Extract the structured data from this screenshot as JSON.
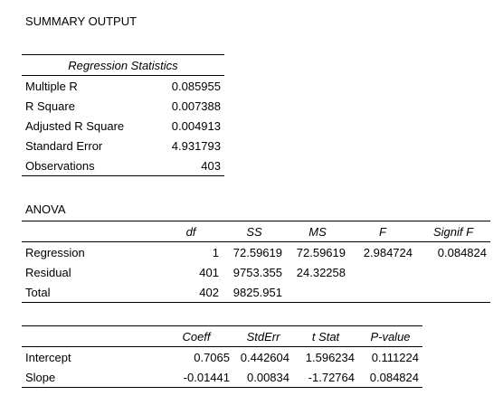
{
  "title": "SUMMARY OUTPUT",
  "regression_statistics": {
    "header": "Regression Statistics",
    "rows": [
      {
        "label": "Multiple R",
        "value": "0.085955"
      },
      {
        "label": "R Square",
        "value": "0.007388"
      },
      {
        "label": "Adjusted R Square",
        "value": "0.004913"
      },
      {
        "label": "Standard Error",
        "value": "4.931793"
      },
      {
        "label": "Observations",
        "value": "403"
      }
    ]
  },
  "anova": {
    "title": "ANOVA",
    "headers": [
      "df",
      "SS",
      "MS",
      "F",
      "Signif F"
    ],
    "rows": [
      {
        "label": "Regression",
        "cells": [
          "1",
          "72.59619",
          "72.59619",
          "2.984724",
          "0.084824"
        ]
      },
      {
        "label": "Residual",
        "cells": [
          "401",
          "9753.355",
          "24.32258",
          "",
          ""
        ]
      },
      {
        "label": "Total",
        "cells": [
          "402",
          "9825.951",
          "",
          "",
          ""
        ]
      }
    ]
  },
  "coefficients": {
    "headers": [
      "Coeff",
      "StdErr",
      "t Stat",
      "P-value"
    ],
    "rows": [
      {
        "label": "Intercept",
        "cells": [
          "0.7065",
          "0.442604",
          "1.596234",
          "0.111224"
        ]
      },
      {
        "label": "Slope",
        "cells": [
          "-0.01441",
          "0.00834",
          "-1.72764",
          "0.084824"
        ]
      }
    ]
  }
}
